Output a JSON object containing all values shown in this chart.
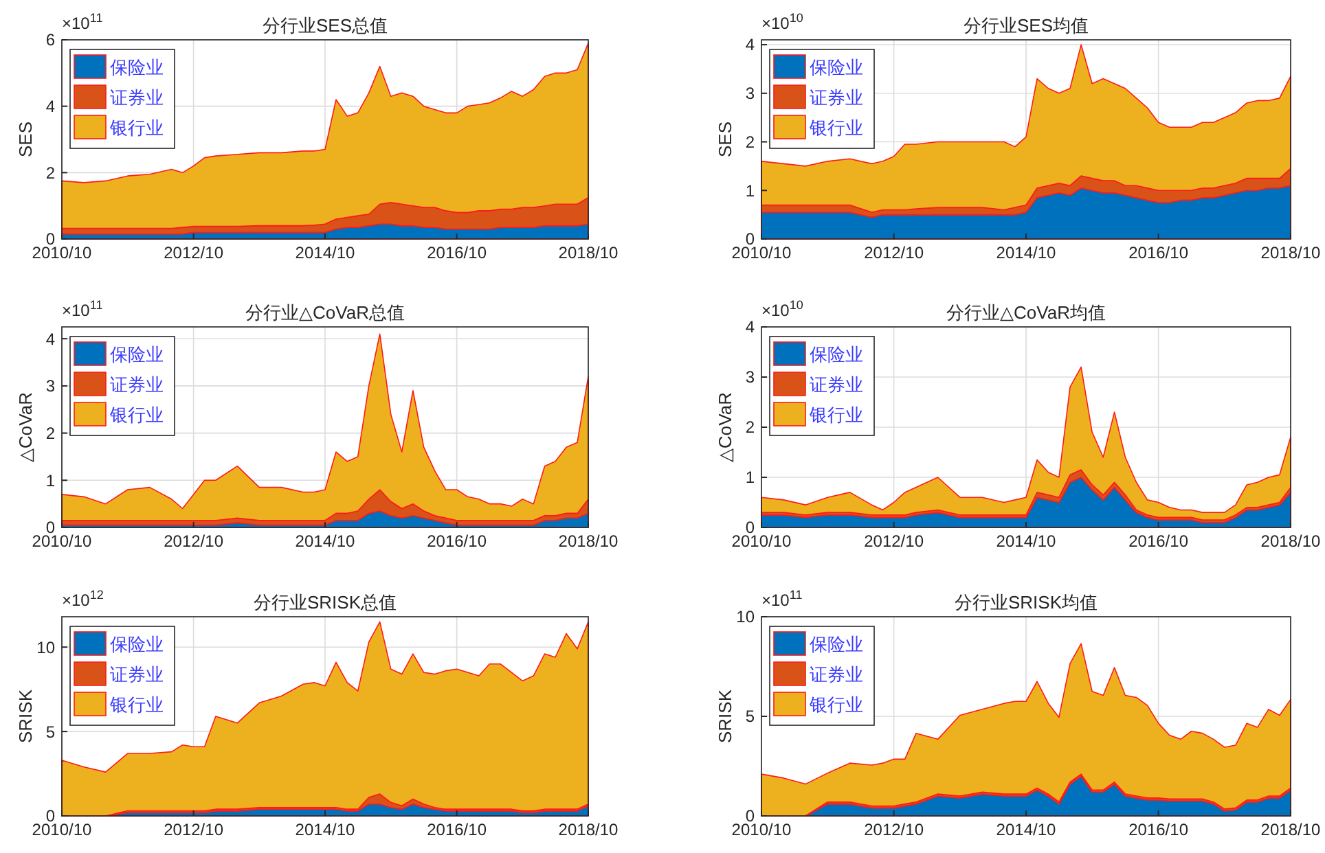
{
  "chart_data": [
    {
      "type": "area",
      "title": "分行业SES总值",
      "ylabel": "SES",
      "annotations": [
        "×10$^{11}$"
      ],
      "stacked": true,
      "grid": true,
      "legend": "top left",
      "x": [
        "2010-10",
        "2011-02",
        "2011-06",
        "2011-10",
        "2012-02",
        "2012-06",
        "2012-08",
        "2012-10",
        "2012-12",
        "2013-02",
        "2013-06",
        "2013-10",
        "2014-02",
        "2014-06",
        "2014-08",
        "2014-10",
        "2014-12",
        "2015-02",
        "2015-04",
        "2015-06",
        "2015-08",
        "2015-10",
        "2015-12",
        "2016-02",
        "2016-04",
        "2016-06",
        "2016-08",
        "2016-10",
        "2016-12",
        "2017-02",
        "2017-04",
        "2017-06",
        "2017-08",
        "2017-10",
        "2017-12",
        "2018-02",
        "2018-04",
        "2018-06",
        "2018-08",
        "2018-10"
      ],
      "xlim": [
        "2010-10",
        "2018-10"
      ],
      "xticks": [
        {
          "value": "2010-10",
          "label": "2010/10"
        },
        {
          "value": "2012-10",
          "label": "2012/10"
        },
        {
          "value": "2014-10",
          "label": "2014/10"
        },
        {
          "value": "2016-10",
          "label": "2016/10"
        },
        {
          "value": "2018-10",
          "label": "2018/10"
        }
      ],
      "ylim": [
        0,
        6
      ],
      "yticks": [
        0,
        2,
        4,
        6
      ],
      "series": [
        {
          "name": "保险业",
          "color": "#0072bd",
          "values": [
            0.15,
            0.15,
            0.15,
            0.15,
            0.15,
            0.15,
            0.15,
            0.2,
            0.2,
            0.2,
            0.2,
            0.2,
            0.2,
            0.2,
            0.2,
            0.2,
            0.3,
            0.35,
            0.35,
            0.4,
            0.45,
            0.45,
            0.4,
            0.4,
            0.35,
            0.35,
            0.3,
            0.3,
            0.3,
            0.3,
            0.3,
            0.35,
            0.35,
            0.35,
            0.35,
            0.4,
            0.4,
            0.4,
            0.4,
            0.45
          ]
        },
        {
          "name": "证券业",
          "color": "#d95319",
          "values": [
            0.17,
            0.17,
            0.17,
            0.17,
            0.17,
            0.17,
            0.2,
            0.18,
            0.18,
            0.18,
            0.18,
            0.2,
            0.2,
            0.2,
            0.22,
            0.25,
            0.3,
            0.3,
            0.35,
            0.35,
            0.6,
            0.65,
            0.65,
            0.6,
            0.6,
            0.6,
            0.55,
            0.5,
            0.5,
            0.55,
            0.55,
            0.55,
            0.55,
            0.6,
            0.6,
            0.6,
            0.65,
            0.65,
            0.65,
            0.8
          ]
        },
        {
          "name": "银行业",
          "color": "#edb120",
          "values": [
            1.43,
            1.38,
            1.43,
            1.58,
            1.63,
            1.78,
            1.65,
            1.82,
            2.07,
            2.12,
            2.17,
            2.2,
            2.2,
            2.25,
            2.23,
            2.25,
            3.6,
            3.05,
            3.1,
            3.65,
            4.15,
            3.2,
            3.35,
            3.3,
            3.05,
            2.95,
            2.95,
            3.0,
            3.2,
            3.2,
            3.25,
            3.35,
            3.55,
            3.35,
            3.55,
            3.9,
            3.95,
            3.95,
            4.05,
            4.65
          ]
        }
      ]
    },
    {
      "type": "area",
      "title": "分行业SES均值",
      "ylabel": "SES",
      "annotations": [
        "×10$^{10}$"
      ],
      "stacked": true,
      "grid": true,
      "legend": "top left",
      "x": [
        "2010-10",
        "2011-02",
        "2011-06",
        "2011-10",
        "2012-02",
        "2012-06",
        "2012-08",
        "2012-10",
        "2012-12",
        "2013-02",
        "2013-06",
        "2013-10",
        "2014-02",
        "2014-06",
        "2014-08",
        "2014-10",
        "2014-12",
        "2015-02",
        "2015-04",
        "2015-06",
        "2015-08",
        "2015-10",
        "2015-12",
        "2016-02",
        "2016-04",
        "2016-06",
        "2016-08",
        "2016-10",
        "2016-12",
        "2017-02",
        "2017-04",
        "2017-06",
        "2017-08",
        "2017-10",
        "2017-12",
        "2018-02",
        "2018-04",
        "2018-06",
        "2018-08",
        "2018-10"
      ],
      "xlim": [
        "2010-10",
        "2018-10"
      ],
      "xticks": [
        {
          "value": "2010-10",
          "label": "2010/10"
        },
        {
          "value": "2012-10",
          "label": "2012/10"
        },
        {
          "value": "2014-10",
          "label": "2014/10"
        },
        {
          "value": "2016-10",
          "label": "2016/10"
        },
        {
          "value": "2018-10",
          "label": "2018/10"
        }
      ],
      "ylim": [
        0,
        4.1
      ],
      "yticks": [
        0,
        1,
        2,
        3,
        4
      ],
      "series": [
        {
          "name": "保险业",
          "color": "#0072bd",
          "values": [
            0.55,
            0.55,
            0.55,
            0.55,
            0.55,
            0.45,
            0.5,
            0.5,
            0.5,
            0.5,
            0.5,
            0.5,
            0.5,
            0.5,
            0.5,
            0.55,
            0.85,
            0.9,
            0.95,
            0.9,
            1.05,
            1.0,
            0.95,
            0.95,
            0.9,
            0.85,
            0.8,
            0.75,
            0.75,
            0.8,
            0.8,
            0.85,
            0.85,
            0.9,
            0.95,
            1.0,
            1.0,
            1.05,
            1.05,
            1.1
          ]
        },
        {
          "name": "证券业",
          "color": "#d95319",
          "values": [
            0.15,
            0.15,
            0.15,
            0.15,
            0.15,
            0.1,
            0.1,
            0.1,
            0.1,
            0.12,
            0.15,
            0.15,
            0.15,
            0.1,
            0.15,
            0.15,
            0.2,
            0.2,
            0.2,
            0.2,
            0.25,
            0.25,
            0.25,
            0.25,
            0.2,
            0.25,
            0.25,
            0.25,
            0.25,
            0.2,
            0.2,
            0.2,
            0.2,
            0.2,
            0.2,
            0.25,
            0.25,
            0.2,
            0.2,
            0.35
          ]
        },
        {
          "name": "银行业",
          "color": "#edb120",
          "values": [
            0.9,
            0.85,
            0.8,
            0.9,
            0.95,
            1.0,
            1.0,
            1.1,
            1.35,
            1.33,
            1.35,
            1.35,
            1.35,
            1.4,
            1.25,
            1.4,
            2.25,
            2.0,
            1.85,
            2.0,
            2.7,
            1.95,
            2.1,
            2.0,
            2.0,
            1.8,
            1.65,
            1.4,
            1.3,
            1.3,
            1.3,
            1.35,
            1.35,
            1.4,
            1.45,
            1.55,
            1.6,
            1.6,
            1.65,
            1.9
          ]
        }
      ]
    },
    {
      "type": "area",
      "title": "分行业△CoVaR总值",
      "ylabel": "△CoVaR",
      "annotations": [
        "×10$^{11}$"
      ],
      "stacked": true,
      "grid": true,
      "legend": "top left",
      "x": [
        "2010-10",
        "2011-02",
        "2011-06",
        "2011-10",
        "2012-02",
        "2012-06",
        "2012-08",
        "2012-10",
        "2012-12",
        "2013-02",
        "2013-06",
        "2013-10",
        "2014-02",
        "2014-06",
        "2014-08",
        "2014-10",
        "2014-12",
        "2015-02",
        "2015-04",
        "2015-06",
        "2015-08",
        "2015-10",
        "2015-12",
        "2016-02",
        "2016-04",
        "2016-06",
        "2016-08",
        "2016-10",
        "2016-12",
        "2017-02",
        "2017-04",
        "2017-06",
        "2017-08",
        "2017-10",
        "2017-12",
        "2018-02",
        "2018-04",
        "2018-06",
        "2018-08",
        "2018-10"
      ],
      "xlim": [
        "2010-10",
        "2018-10"
      ],
      "xticks": [
        {
          "value": "2010-10",
          "label": "2010/10"
        },
        {
          "value": "2012-10",
          "label": "2012/10"
        },
        {
          "value": "2014-10",
          "label": "2014/10"
        },
        {
          "value": "2016-10",
          "label": "2016/10"
        },
        {
          "value": "2018-10",
          "label": "2018/10"
        }
      ],
      "ylim": [
        0,
        4.25
      ],
      "yticks": [
        0,
        1,
        2,
        3,
        4
      ],
      "series": [
        {
          "name": "保险业",
          "color": "#0072bd",
          "values": [
            0.05,
            0.05,
            0.05,
            0.05,
            0.05,
            0.05,
            0.05,
            0.05,
            0.05,
            0.05,
            0.1,
            0.05,
            0.05,
            0.05,
            0.05,
            0.05,
            0.15,
            0.15,
            0.15,
            0.3,
            0.35,
            0.25,
            0.2,
            0.25,
            0.2,
            0.15,
            0.1,
            0.05,
            0.05,
            0.05,
            0.05,
            0.05,
            0.05,
            0.05,
            0.05,
            0.15,
            0.15,
            0.2,
            0.2,
            0.3
          ]
        },
        {
          "name": "证券业",
          "color": "#d95319",
          "values": [
            0.1,
            0.1,
            0.1,
            0.1,
            0.1,
            0.1,
            0.1,
            0.1,
            0.1,
            0.1,
            0.1,
            0.1,
            0.1,
            0.1,
            0.1,
            0.1,
            0.15,
            0.15,
            0.2,
            0.3,
            0.45,
            0.3,
            0.2,
            0.25,
            0.15,
            0.1,
            0.1,
            0.1,
            0.1,
            0.1,
            0.1,
            0.1,
            0.1,
            0.1,
            0.1,
            0.1,
            0.1,
            0.1,
            0.1,
            0.3
          ]
        },
        {
          "name": "银行业",
          "color": "#edb120",
          "values": [
            0.55,
            0.5,
            0.35,
            0.65,
            0.7,
            0.45,
            0.25,
            0.55,
            0.85,
            0.85,
            1.1,
            0.7,
            0.7,
            0.6,
            0.6,
            0.65,
            1.3,
            1.1,
            1.15,
            2.4,
            3.3,
            1.85,
            1.2,
            2.4,
            1.35,
            0.95,
            0.6,
            0.65,
            0.5,
            0.45,
            0.35,
            0.35,
            0.3,
            0.45,
            0.35,
            1.05,
            1.15,
            1.4,
            1.5,
            2.6
          ]
        }
      ]
    },
    {
      "type": "area",
      "title": "分行业△CoVaR均值",
      "ylabel": "△CoVaR",
      "annotations": [
        "×10$^{10}$"
      ],
      "stacked": true,
      "grid": true,
      "legend": "top left",
      "x": [
        "2010-10",
        "2011-02",
        "2011-06",
        "2011-10",
        "2012-02",
        "2012-06",
        "2012-08",
        "2012-10",
        "2012-12",
        "2013-02",
        "2013-06",
        "2013-10",
        "2014-02",
        "2014-06",
        "2014-08",
        "2014-10",
        "2014-12",
        "2015-02",
        "2015-04",
        "2015-06",
        "2015-08",
        "2015-10",
        "2015-12",
        "2016-02",
        "2016-04",
        "2016-06",
        "2016-08",
        "2016-10",
        "2016-12",
        "2017-02",
        "2017-04",
        "2017-06",
        "2017-08",
        "2017-10",
        "2017-12",
        "2018-02",
        "2018-04",
        "2018-06",
        "2018-08",
        "2018-10"
      ],
      "xlim": [
        "2010-10",
        "2018-10"
      ],
      "xticks": [
        {
          "value": "2010-10",
          "label": "2010/10"
        },
        {
          "value": "2012-10",
          "label": "2012/10"
        },
        {
          "value": "2014-10",
          "label": "2014/10"
        },
        {
          "value": "2016-10",
          "label": "2016/10"
        },
        {
          "value": "2018-10",
          "label": "2018/10"
        }
      ],
      "ylim": [
        0,
        4
      ],
      "yticks": [
        0,
        1,
        2,
        3,
        4
      ],
      "series": [
        {
          "name": "保险业",
          "color": "#0072bd",
          "values": [
            0.25,
            0.25,
            0.2,
            0.25,
            0.25,
            0.2,
            0.2,
            0.2,
            0.2,
            0.25,
            0.3,
            0.2,
            0.2,
            0.2,
            0.2,
            0.2,
            0.6,
            0.55,
            0.5,
            0.9,
            1.0,
            0.75,
            0.55,
            0.8,
            0.55,
            0.3,
            0.2,
            0.15,
            0.15,
            0.15,
            0.15,
            0.1,
            0.1,
            0.1,
            0.2,
            0.35,
            0.35,
            0.4,
            0.45,
            0.7
          ]
        },
        {
          "name": "证券业",
          "color": "#d95319",
          "values": [
            0.05,
            0.05,
            0.05,
            0.05,
            0.05,
            0.05,
            0.05,
            0.05,
            0.05,
            0.05,
            0.05,
            0.05,
            0.05,
            0.05,
            0.05,
            0.05,
            0.1,
            0.1,
            0.1,
            0.15,
            0.15,
            0.1,
            0.1,
            0.1,
            0.1,
            0.05,
            0.05,
            0.05,
            0.05,
            0.05,
            0.05,
            0.05,
            0.05,
            0.05,
            0.05,
            0.05,
            0.05,
            0.05,
            0.05,
            0.1
          ]
        },
        {
          "name": "银行业",
          "color": "#edb120",
          "values": [
            0.3,
            0.25,
            0.2,
            0.3,
            0.4,
            0.2,
            0.1,
            0.25,
            0.45,
            0.5,
            0.65,
            0.35,
            0.35,
            0.25,
            0.3,
            0.35,
            0.65,
            0.45,
            0.4,
            1.75,
            2.05,
            1.05,
            0.75,
            1.4,
            0.75,
            0.55,
            0.3,
            0.3,
            0.2,
            0.15,
            0.15,
            0.15,
            0.15,
            0.15,
            0.2,
            0.45,
            0.5,
            0.55,
            0.55,
            1.0
          ]
        }
      ]
    },
    {
      "type": "area",
      "title": "分行业SRISK总值",
      "ylabel": "SRISK",
      "annotations": [
        "×10$^{12}$"
      ],
      "stacked": true,
      "grid": true,
      "legend": "top left",
      "x": [
        "2010-10",
        "2011-02",
        "2011-06",
        "2011-10",
        "2012-02",
        "2012-06",
        "2012-08",
        "2012-10",
        "2012-12",
        "2013-02",
        "2013-06",
        "2013-10",
        "2014-02",
        "2014-06",
        "2014-08",
        "2014-10",
        "2014-12",
        "2015-02",
        "2015-04",
        "2015-06",
        "2015-08",
        "2015-10",
        "2015-12",
        "2016-02",
        "2016-04",
        "2016-06",
        "2016-08",
        "2016-10",
        "2016-12",
        "2017-02",
        "2017-04",
        "2017-06",
        "2017-08",
        "2017-10",
        "2017-12",
        "2018-02",
        "2018-04",
        "2018-06",
        "2018-08",
        "2018-10"
      ],
      "xlim": [
        "2010-10",
        "2018-10"
      ],
      "xticks": [
        {
          "value": "2010-10",
          "label": "2010/10"
        },
        {
          "value": "2012-10",
          "label": "2012/10"
        },
        {
          "value": "2014-10",
          "label": "2014/10"
        },
        {
          "value": "2016-10",
          "label": "2016/10"
        },
        {
          "value": "2018-10",
          "label": "2018/10"
        }
      ],
      "ylim": [
        0,
        11.8
      ],
      "yticks": [
        0,
        5,
        10
      ],
      "series": [
        {
          "name": "保险业",
          "color": "#0072bd",
          "values": [
            0,
            0,
            0,
            0.2,
            0.2,
            0.2,
            0.2,
            0.2,
            0.2,
            0.3,
            0.3,
            0.4,
            0.4,
            0.4,
            0.4,
            0.4,
            0.4,
            0.3,
            0.3,
            0.7,
            0.7,
            0.5,
            0.4,
            0.7,
            0.5,
            0.4,
            0.3,
            0.3,
            0.3,
            0.3,
            0.3,
            0.3,
            0.3,
            0.2,
            0.2,
            0.3,
            0.3,
            0.3,
            0.3,
            0.6
          ]
        },
        {
          "name": "证券业",
          "color": "#d95319",
          "values": [
            0,
            0,
            0,
            0.1,
            0.1,
            0.1,
            0.1,
            0.1,
            0.1,
            0.1,
            0.1,
            0.1,
            0.1,
            0.1,
            0.1,
            0.1,
            0.1,
            0.1,
            0.1,
            0.4,
            0.6,
            0.3,
            0.2,
            0.3,
            0.2,
            0.1,
            0.1,
            0.1,
            0.1,
            0.1,
            0.1,
            0.1,
            0.1,
            0.1,
            0.1,
            0.1,
            0.1,
            0.1,
            0.1,
            0.1
          ]
        },
        {
          "name": "银行业",
          "color": "#edb120",
          "values": [
            3.3,
            2.9,
            2.6,
            3.4,
            3.4,
            3.5,
            3.9,
            3.8,
            3.8,
            5.5,
            5.1,
            6.2,
            6.6,
            7.3,
            7.4,
            7.2,
            8.6,
            7.5,
            7.0,
            9.2,
            10.2,
            7.9,
            7.8,
            8.6,
            7.8,
            7.9,
            8.2,
            8.3,
            8.1,
            7.9,
            8.6,
            8.6,
            8.1,
            7.7,
            8.0,
            9.2,
            9.0,
            10.4,
            9.5,
            10.8
          ]
        }
      ]
    },
    {
      "type": "area",
      "title": "分行业SRISK均值",
      "ylabel": "SRISK",
      "annotations": [
        "×10$^{11}$"
      ],
      "stacked": true,
      "grid": true,
      "legend": "top left",
      "x": [
        "2010-10",
        "2011-02",
        "2011-06",
        "2011-10",
        "2012-02",
        "2012-06",
        "2012-08",
        "2012-10",
        "2012-12",
        "2013-02",
        "2013-06",
        "2013-10",
        "2014-02",
        "2014-06",
        "2014-08",
        "2014-10",
        "2014-12",
        "2015-02",
        "2015-04",
        "2015-06",
        "2015-08",
        "2015-10",
        "2015-12",
        "2016-02",
        "2016-04",
        "2016-06",
        "2016-08",
        "2016-10",
        "2016-12",
        "2017-02",
        "2017-04",
        "2017-06",
        "2017-08",
        "2017-10",
        "2017-12",
        "2018-02",
        "2018-04",
        "2018-06",
        "2018-08",
        "2018-10"
      ],
      "xlim": [
        "2010-10",
        "2018-10"
      ],
      "xticks": [
        {
          "value": "2010-10",
          "label": "2010/10"
        },
        {
          "value": "2012-10",
          "label": "2012/10"
        },
        {
          "value": "2014-10",
          "label": "2014/10"
        },
        {
          "value": "2016-10",
          "label": "2016/10"
        },
        {
          "value": "2018-10",
          "label": "2018/10"
        }
      ],
      "ylim": [
        0,
        10
      ],
      "yticks": [
        0,
        5,
        10
      ],
      "series": [
        {
          "name": "保险业",
          "color": "#0072bd",
          "values": [
            0,
            0,
            0,
            0.6,
            0.6,
            0.4,
            0.4,
            0.4,
            0.5,
            0.6,
            1.0,
            0.9,
            1.1,
            1.0,
            1.0,
            1.0,
            1.3,
            1.0,
            0.6,
            1.6,
            2.0,
            1.2,
            1.2,
            1.6,
            1.0,
            0.9,
            0.8,
            0.8,
            0.75,
            0.75,
            0.75,
            0.75,
            0.6,
            0.25,
            0.3,
            0.7,
            0.7,
            0.9,
            0.9,
            1.3
          ]
        },
        {
          "name": "证券业",
          "color": "#d95319",
          "values": [
            0,
            0,
            0,
            0.1,
            0.1,
            0.1,
            0.1,
            0.1,
            0.1,
            0.1,
            0.1,
            0.1,
            0.1,
            0.1,
            0.1,
            0.1,
            0.1,
            0.1,
            0.1,
            0.1,
            0.1,
            0.1,
            0.1,
            0.1,
            0.1,
            0.1,
            0.1,
            0.1,
            0.1,
            0.1,
            0.1,
            0.1,
            0.1,
            0.1,
            0.1,
            0.1,
            0.1,
            0.1,
            0.1,
            0.1
          ]
        },
        {
          "name": "银行业",
          "color": "#edb120",
          "values": [
            2.1,
            1.9,
            1.6,
            1.45,
            1.95,
            2.05,
            2.15,
            2.35,
            2.25,
            3.45,
            2.75,
            4.05,
            4.15,
            4.55,
            4.65,
            4.65,
            5.35,
            4.55,
            4.25,
            5.95,
            6.55,
            4.95,
            4.75,
            5.75,
            4.95,
            4.95,
            4.65,
            3.75,
            3.2,
            3.0,
            3.4,
            3.3,
            3.15,
            3.1,
            3.15,
            3.85,
            3.65,
            4.35,
            4.05,
            4.45
          ]
        }
      ]
    }
  ]
}
